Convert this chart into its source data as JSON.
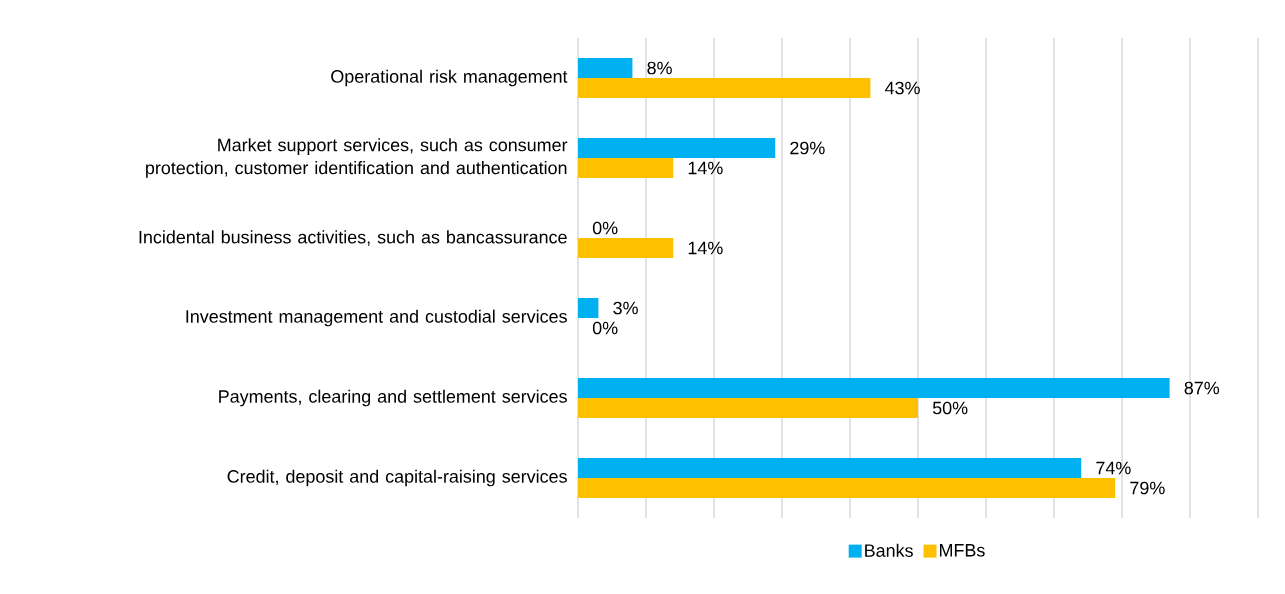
{
  "chart_data": {
    "type": "bar",
    "orientation": "horizontal",
    "categories": [
      "Operational risk management",
      "Market support services, such as consumer protection, customer identification and authentication",
      "Incidental business activities, such as bancassurance",
      "Investment management and custodial services",
      "Payments, clearing and settlement services",
      "Credit, deposit and capital-raising services"
    ],
    "series": [
      {
        "name": "Banks",
        "color": "#00b0f0",
        "values": [
          8,
          29,
          0,
          3,
          87,
          74
        ],
        "value_labels": [
          "8%",
          "29%",
          "0%",
          "3%",
          "87%",
          "74%"
        ]
      },
      {
        "name": "MFBs",
        "color": "#ffc000",
        "values": [
          43,
          14,
          14,
          0,
          50,
          79
        ],
        "value_labels": [
          "43%",
          "14%",
          "14%",
          "0%",
          "50%",
          "79%"
        ]
      }
    ],
    "xlim": [
      0,
      100
    ],
    "xticks": [
      {
        "value": 0,
        "label": null
      },
      {
        "value": 10,
        "label": null
      },
      {
        "value": 20,
        "label": null
      },
      {
        "value": 30,
        "label": null
      },
      {
        "value": 40,
        "label": null
      },
      {
        "value": 50,
        "label": null
      },
      {
        "value": 60,
        "label": null
      },
      {
        "value": 70,
        "label": null
      },
      {
        "value": 80,
        "label": null
      },
      {
        "value": 90,
        "label": null
      },
      {
        "value": 100,
        "label": null
      }
    ],
    "tick_labels": "y",
    "grid": "x",
    "legend": "bottom"
  }
}
